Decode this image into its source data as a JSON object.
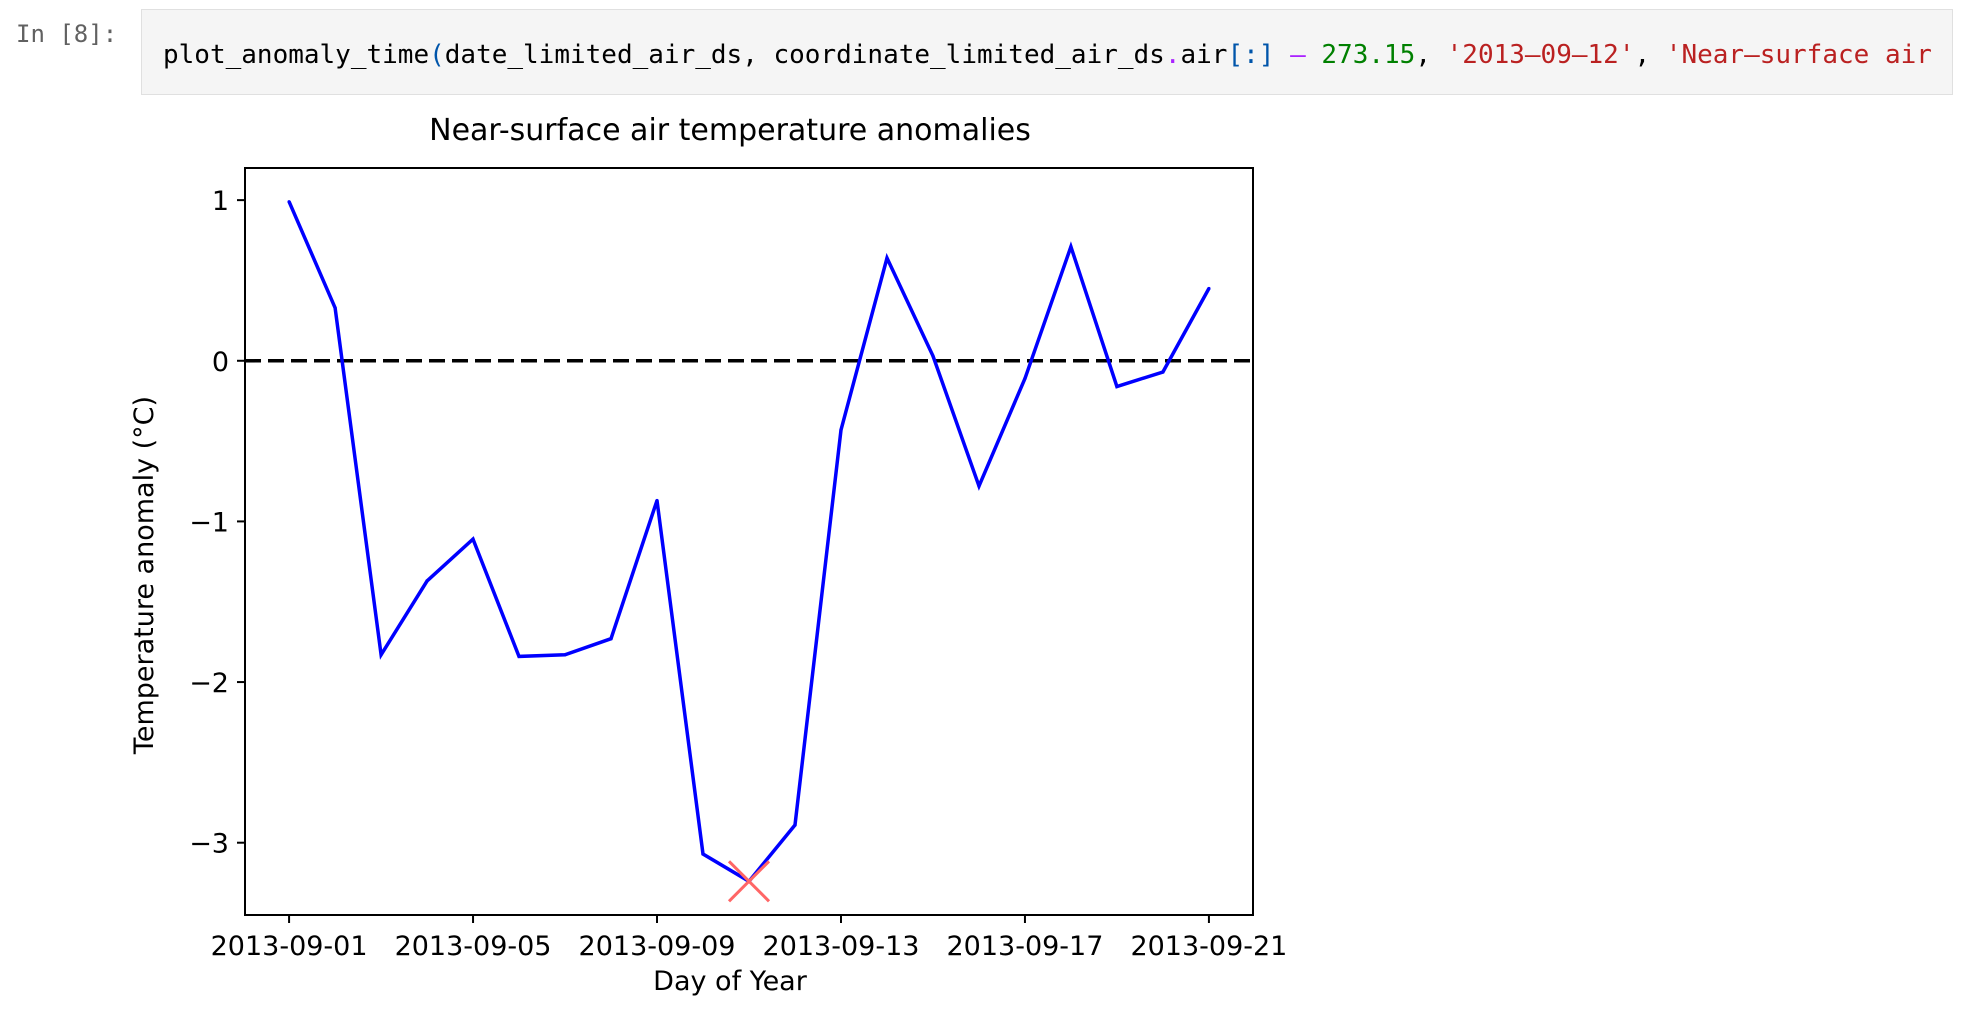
{
  "cell": {
    "prompt": "In [8]:",
    "code": {
      "func": "plot_anomaly_time",
      "open_paren": "(",
      "arg1": "date_limited_air_ds",
      "comma1": ", ",
      "arg2a": "coordinate_limited_air_ds",
      "dot": ".",
      "arg2b": "air",
      "slice": "[:]",
      "minus": " – ",
      "number": "273.15",
      "comma2": ", ",
      "str1": "'2013–09–12'",
      "comma3": ", ",
      "str2": "'Near–surface air"
    }
  },
  "chart_data": {
    "type": "line",
    "title": "Near-surface air temperature anomalies",
    "xlabel": "Day of Year",
    "ylabel": "Temperature anomaly ($^\\circ$C)",
    "ylabel_display": "Temperature anomaly (°C)",
    "x": [
      "2013-09-01",
      "2013-09-02",
      "2013-09-03",
      "2013-09-04",
      "2013-09-05",
      "2013-09-06",
      "2013-09-07",
      "2013-09-08",
      "2013-09-09",
      "2013-09-10",
      "2013-09-11",
      "2013-09-12",
      "2013-09-13",
      "2013-09-14",
      "2013-09-15",
      "2013-09-16",
      "2013-09-17",
      "2013-09-18",
      "2013-09-19",
      "2013-09-20",
      "2013-09-21"
    ],
    "series": [
      {
        "values": [
          0.99,
          0.33,
          -1.83,
          -1.37,
          -1.11,
          -1.84,
          -1.83,
          -1.73,
          -0.87,
          -3.07,
          -3.24,
          -2.89,
          -0.43,
          0.64,
          0.03,
          -0.78,
          -0.11,
          0.71,
          -0.16,
          -0.07,
          0.45
        ],
        "color": "#0000ff"
      }
    ],
    "reference_line": {
      "y": 0,
      "style": "dashed",
      "color": "#000000"
    },
    "marker": {
      "x": "2013-09-11",
      "y": -3.24,
      "symbol": "x",
      "color": "#ff6666"
    },
    "x_ticks": [
      "2013-09-01",
      "2013-09-05",
      "2013-09-09",
      "2013-09-13",
      "2013-09-17",
      "2013-09-21"
    ],
    "y_ticks": [
      1,
      0,
      -1,
      -2,
      -3
    ],
    "y_tick_labels": [
      "1",
      "0",
      "−1",
      "−2",
      "−3"
    ],
    "ylim": [
      -3.45,
      1.2
    ],
    "xlim": [
      "2013-08-31T01:00",
      "2013-09-21T23:00"
    ],
    "grid": false
  }
}
